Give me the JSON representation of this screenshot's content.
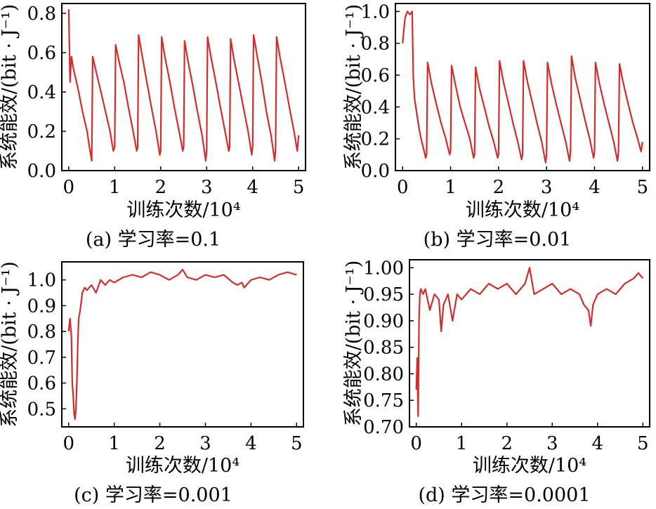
{
  "figure": {
    "series_color": "#d42b2b",
    "axis_color": "#000000"
  },
  "chart_data": [
    {
      "type": "line",
      "caption": "(a) 学习率=0.1",
      "xlabel": "训练次数/10⁴",
      "ylabel": "系统能效/(bit · J⁻¹)",
      "xlim": [
        -0.15,
        5.15
      ],
      "ylim": [
        0.0,
        0.85
      ],
      "xticks": [
        0,
        1,
        2,
        3,
        4,
        5
      ],
      "xtick_labels": [
        "0",
        "1",
        "2",
        "3",
        "4",
        "5"
      ],
      "yticks": [
        0.0,
        0.2,
        0.4,
        0.6,
        0.8
      ],
      "ytick_labels": [
        "0.0",
        "0.2",
        "0.4",
        "0.6",
        "0.8"
      ],
      "grid": false,
      "series": [
        {
          "color": "#d42b2b",
          "x": [
            0.0,
            0.03,
            0.05,
            0.06,
            0.1,
            0.2,
            0.3,
            0.4,
            0.45,
            0.5,
            0.52,
            0.6,
            0.7,
            0.8,
            0.9,
            0.97,
            1.0,
            1.02,
            1.1,
            1.2,
            1.3,
            1.4,
            1.48,
            1.5,
            1.52,
            1.6,
            1.7,
            1.8,
            1.9,
            1.98,
            2.0,
            2.02,
            2.1,
            2.2,
            2.3,
            2.4,
            2.48,
            2.5,
            2.52,
            2.6,
            2.7,
            2.8,
            2.9,
            2.98,
            3.0,
            3.02,
            3.1,
            3.2,
            3.3,
            3.4,
            3.48,
            3.5,
            3.52,
            3.6,
            3.7,
            3.8,
            3.9,
            3.98,
            4.0,
            4.02,
            4.1,
            4.2,
            4.3,
            4.4,
            4.48,
            4.5,
            4.52,
            4.6,
            4.7,
            4.8,
            4.9,
            4.97,
            5.0
          ],
          "y": [
            0.82,
            0.45,
            0.55,
            0.58,
            0.52,
            0.42,
            0.3,
            0.2,
            0.12,
            0.05,
            0.58,
            0.5,
            0.4,
            0.3,
            0.2,
            0.1,
            0.12,
            0.64,
            0.55,
            0.45,
            0.32,
            0.2,
            0.1,
            0.12,
            0.69,
            0.58,
            0.45,
            0.32,
            0.2,
            0.08,
            0.1,
            0.68,
            0.57,
            0.45,
            0.32,
            0.2,
            0.1,
            0.12,
            0.66,
            0.55,
            0.43,
            0.3,
            0.18,
            0.05,
            0.1,
            0.68,
            0.57,
            0.45,
            0.32,
            0.2,
            0.1,
            0.12,
            0.67,
            0.56,
            0.44,
            0.32,
            0.2,
            0.08,
            0.12,
            0.69,
            0.58,
            0.45,
            0.3,
            0.18,
            0.05,
            0.12,
            0.68,
            0.57,
            0.45,
            0.32,
            0.2,
            0.1,
            0.18
          ]
        }
      ]
    },
    {
      "type": "line",
      "caption": "(b) 学习率=0.01",
      "xlabel": "训练次数/10⁴",
      "ylabel": "系统能效/(bit · J⁻¹)",
      "xlim": [
        -0.15,
        5.15
      ],
      "ylim": [
        0.0,
        1.05
      ],
      "xticks": [
        0,
        1,
        2,
        3,
        4,
        5
      ],
      "xtick_labels": [
        "0",
        "1",
        "2",
        "3",
        "4",
        "5"
      ],
      "yticks": [
        0.0,
        0.2,
        0.4,
        0.6,
        0.8,
        1.0
      ],
      "ytick_labels": [
        "0.0",
        "0.2",
        "0.4",
        "0.6",
        "0.8",
        "1.0"
      ],
      "grid": false,
      "series": [
        {
          "color": "#d42b2b",
          "x": [
            0.0,
            0.05,
            0.1,
            0.15,
            0.2,
            0.22,
            0.25,
            0.3,
            0.35,
            0.4,
            0.45,
            0.48,
            0.5,
            0.52,
            0.6,
            0.7,
            0.8,
            0.9,
            0.98,
            1.0,
            1.02,
            1.1,
            1.2,
            1.3,
            1.4,
            1.48,
            1.5,
            1.52,
            1.6,
            1.7,
            1.8,
            1.9,
            1.98,
            2.0,
            2.02,
            2.1,
            2.2,
            2.3,
            2.4,
            2.48,
            2.5,
            2.52,
            2.6,
            2.7,
            2.8,
            2.9,
            2.98,
            3.0,
            3.02,
            3.1,
            3.2,
            3.3,
            3.4,
            3.48,
            3.5,
            3.52,
            3.6,
            3.7,
            3.8,
            3.9,
            3.98,
            4.0,
            4.02,
            4.1,
            4.2,
            4.3,
            4.4,
            4.48,
            4.5,
            4.52,
            4.6,
            4.7,
            4.8,
            4.9,
            4.97,
            5.0
          ],
          "y": [
            0.8,
            0.96,
            1.0,
            0.98,
            1.0,
            0.6,
            0.45,
            0.35,
            0.25,
            0.18,
            0.12,
            0.08,
            0.1,
            0.68,
            0.55,
            0.42,
            0.3,
            0.2,
            0.1,
            0.12,
            0.66,
            0.54,
            0.4,
            0.3,
            0.2,
            0.08,
            0.1,
            0.65,
            0.52,
            0.4,
            0.28,
            0.18,
            0.08,
            0.1,
            0.69,
            0.56,
            0.43,
            0.3,
            0.18,
            0.07,
            0.1,
            0.69,
            0.56,
            0.43,
            0.3,
            0.18,
            0.05,
            0.1,
            0.68,
            0.55,
            0.42,
            0.3,
            0.18,
            0.06,
            0.12,
            0.72,
            0.58,
            0.45,
            0.32,
            0.2,
            0.08,
            0.12,
            0.68,
            0.55,
            0.42,
            0.3,
            0.18,
            0.06,
            0.12,
            0.67,
            0.55,
            0.42,
            0.3,
            0.2,
            0.12,
            0.18
          ]
        }
      ]
    },
    {
      "type": "line",
      "caption": "(c) 学习率=0.001",
      "xlabel": "训练次数/10⁴",
      "ylabel": "系统能效/(bit · J⁻¹)",
      "xlim": [
        -0.15,
        5.15
      ],
      "ylim": [
        0.43,
        1.07
      ],
      "xticks": [
        0,
        1,
        2,
        3,
        4,
        5
      ],
      "xtick_labels": [
        "0",
        "1",
        "2",
        "3",
        "4",
        "5"
      ],
      "yticks": [
        0.5,
        0.6,
        0.7,
        0.8,
        0.9,
        1.0
      ],
      "ytick_labels": [
        "0.5",
        "0.6",
        "0.7",
        "0.8",
        "0.9",
        "1.0"
      ],
      "grid": false,
      "series": [
        {
          "color": "#d42b2b",
          "x": [
            0.0,
            0.03,
            0.06,
            0.08,
            0.1,
            0.12,
            0.14,
            0.16,
            0.18,
            0.2,
            0.22,
            0.25,
            0.28,
            0.3,
            0.35,
            0.4,
            0.5,
            0.6,
            0.7,
            0.8,
            0.9,
            1.0,
            1.2,
            1.4,
            1.6,
            1.8,
            2.0,
            2.2,
            2.4,
            2.5,
            2.6,
            2.8,
            3.0,
            3.2,
            3.4,
            3.6,
            3.7,
            3.8,
            3.85,
            3.9,
            4.0,
            4.2,
            4.4,
            4.6,
            4.8,
            5.0
          ],
          "y": [
            0.8,
            0.85,
            0.78,
            0.6,
            0.55,
            0.48,
            0.46,
            0.5,
            0.6,
            0.75,
            0.85,
            0.88,
            0.92,
            0.95,
            0.97,
            0.96,
            0.98,
            0.95,
            1.0,
            0.98,
            1.0,
            0.99,
            1.01,
            1.02,
            1.01,
            1.03,
            1.02,
            1.0,
            1.02,
            1.04,
            1.01,
            1.0,
            1.02,
            1.01,
            1.02,
            0.99,
            0.98,
            0.99,
            0.97,
            0.98,
            1.0,
            1.01,
            1.0,
            1.02,
            1.03,
            1.02
          ]
        }
      ]
    },
    {
      "type": "line",
      "caption": "(d) 学习率=0.0001",
      "xlabel": "训练次数/10⁴",
      "ylabel": "系统能效/(bit · J⁻¹)",
      "xlim": [
        -0.15,
        5.15
      ],
      "ylim": [
        0.7,
        1.015
      ],
      "xticks": [
        0,
        1,
        2,
        3,
        4,
        5
      ],
      "xtick_labels": [
        "0",
        "1",
        "2",
        "3",
        "4",
        "5"
      ],
      "yticks": [
        0.7,
        0.75,
        0.8,
        0.85,
        0.9,
        0.95,
        1.0
      ],
      "ytick_labels": [
        "0.70",
        "0.75",
        "0.80",
        "0.85",
        "0.90",
        "0.95",
        "1.00"
      ],
      "grid": false,
      "series": [
        {
          "color": "#d42b2b",
          "x": [
            0.0,
            0.02,
            0.04,
            0.06,
            0.08,
            0.1,
            0.15,
            0.2,
            0.3,
            0.4,
            0.5,
            0.55,
            0.6,
            0.7,
            0.8,
            0.9,
            1.0,
            1.2,
            1.4,
            1.6,
            1.8,
            2.0,
            2.2,
            2.4,
            2.5,
            2.6,
            2.8,
            3.0,
            3.2,
            3.4,
            3.6,
            3.7,
            3.8,
            3.85,
            3.9,
            4.0,
            4.2,
            4.4,
            4.6,
            4.8,
            4.9,
            5.0
          ],
          "y": [
            0.77,
            0.83,
            0.72,
            0.9,
            0.95,
            0.96,
            0.95,
            0.96,
            0.92,
            0.95,
            0.94,
            0.88,
            0.93,
            0.95,
            0.9,
            0.95,
            0.94,
            0.96,
            0.95,
            0.97,
            0.96,
            0.97,
            0.95,
            0.97,
            1.0,
            0.95,
            0.96,
            0.97,
            0.95,
            0.96,
            0.95,
            0.93,
            0.92,
            0.89,
            0.93,
            0.95,
            0.96,
            0.95,
            0.97,
            0.98,
            0.99,
            0.98
          ]
        }
      ]
    }
  ]
}
